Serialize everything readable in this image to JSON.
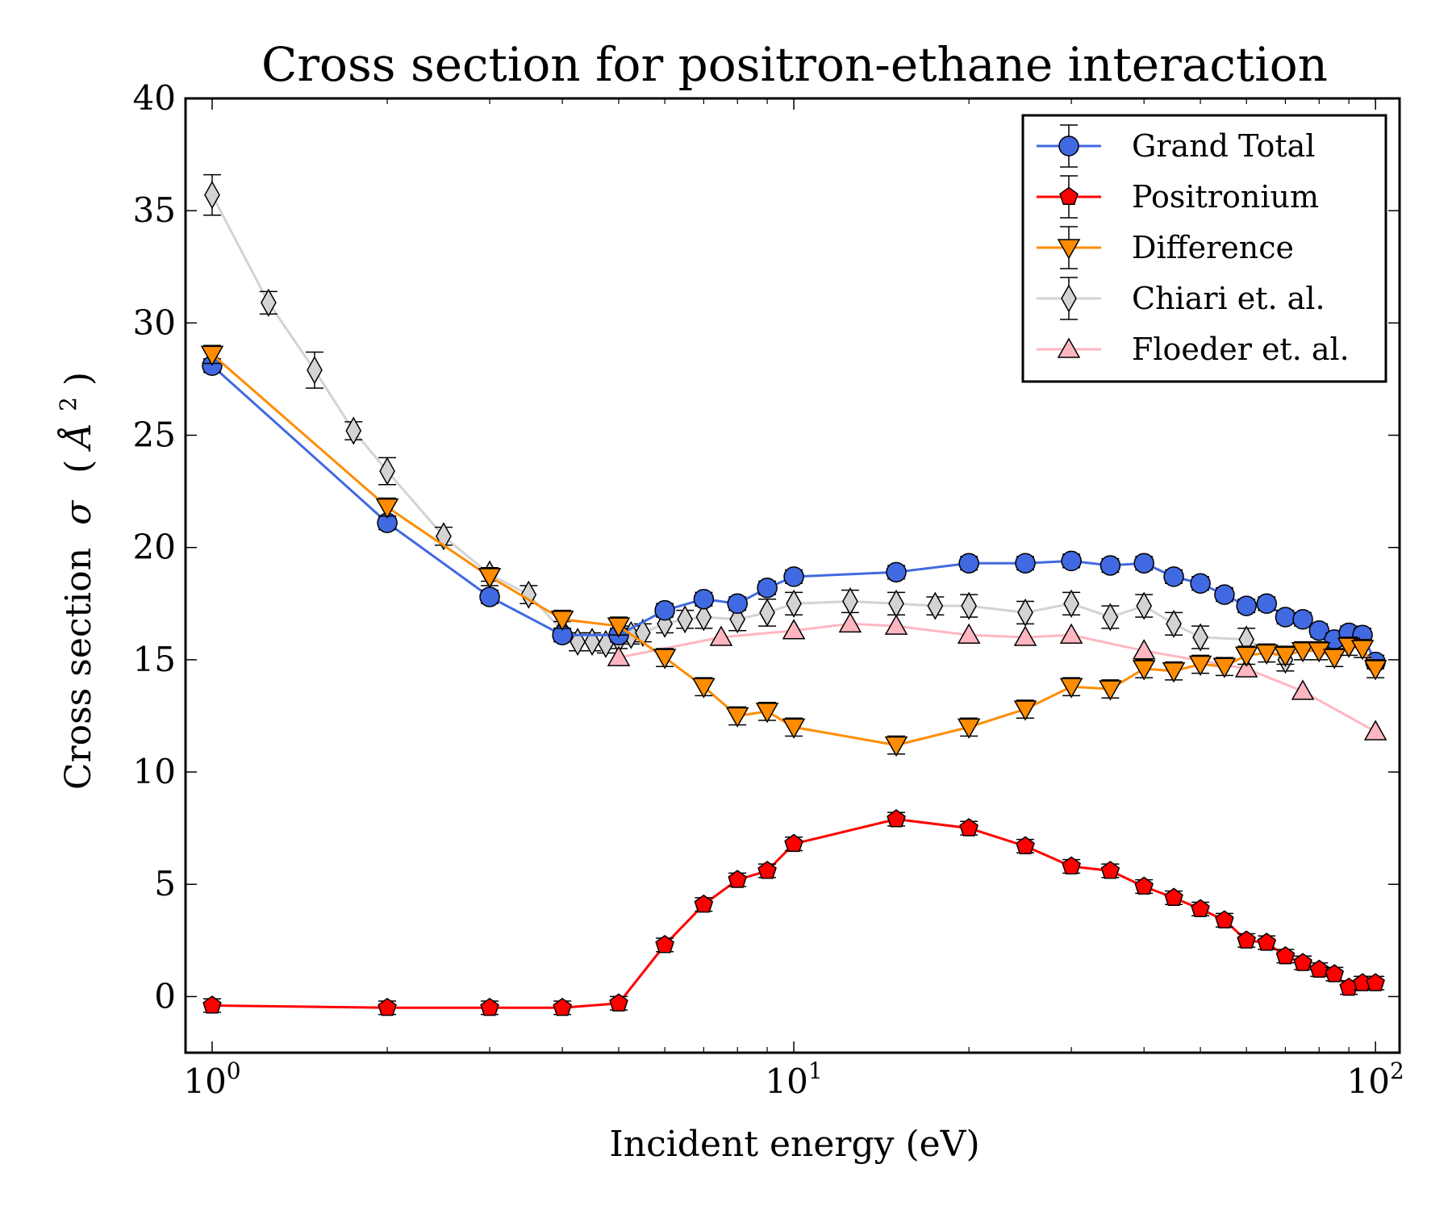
{
  "chart_data": {
    "type": "line",
    "title": "Cross section for positron-ethane interaction",
    "xlabel": "Incident energy (eV)",
    "ylabel": "Cross section σ  (Å²)",
    "ylabel_main": "Cross section",
    "ylabel_symbol": "σ",
    "ylabel_unit_open": "(",
    "ylabel_unit": "Å",
    "ylabel_unit_exp": "2",
    "ylabel_unit_close": ")",
    "x_scale": "log",
    "xlim": [
      0.9,
      110
    ],
    "ylim": [
      -2.5,
      40
    ],
    "grid": false,
    "legend_position": "top-right",
    "x_ticks": [
      {
        "value": 1,
        "base": "10",
        "exp": "0"
      },
      {
        "value": 10,
        "base": "10",
        "exp": "1"
      },
      {
        "value": 100,
        "base": "10",
        "exp": "2"
      }
    ],
    "y_ticks": [
      0,
      5,
      10,
      15,
      20,
      25,
      30,
      35,
      40
    ],
    "y_tick_labels": [
      "0",
      "5",
      "10",
      "15",
      "20",
      "25",
      "30",
      "35",
      "40"
    ],
    "series": [
      {
        "name": "Grand Total",
        "color": "#4169e1",
        "marker": "circle",
        "x": [
          1,
          2,
          3,
          4,
          5,
          6,
          7,
          8,
          9,
          10,
          15,
          20,
          25,
          30,
          35,
          40,
          45,
          50,
          55,
          60,
          65,
          70,
          75,
          80,
          85,
          90,
          95,
          100
        ],
        "y": [
          28.1,
          21.1,
          17.8,
          16.1,
          16.1,
          17.2,
          17.7,
          17.5,
          18.2,
          18.7,
          18.9,
          19.3,
          19.3,
          19.4,
          19.2,
          19.3,
          18.7,
          18.4,
          17.9,
          17.4,
          17.5,
          16.9,
          16.8,
          16.3,
          15.9,
          16.2,
          16.1,
          14.9
        ],
        "err": [
          0.3,
          0.3,
          0.3,
          0.3,
          0.3,
          0.3,
          0.3,
          0.3,
          0.3,
          0.3,
          0.3,
          0.3,
          0.3,
          0.3,
          0.3,
          0.3,
          0.3,
          0.3,
          0.3,
          0.3,
          0.3,
          0.3,
          0.3,
          0.3,
          0.3,
          0.3,
          0.3,
          0.3
        ]
      },
      {
        "name": "Positronium",
        "color": "#ff0000",
        "marker": "pentagon",
        "x": [
          1,
          2,
          3,
          4,
          5,
          6,
          7,
          8,
          9,
          10,
          15,
          20,
          25,
          30,
          35,
          40,
          45,
          50,
          55,
          60,
          65,
          70,
          75,
          80,
          85,
          90,
          95,
          100
        ],
        "y": [
          -0.4,
          -0.5,
          -0.5,
          -0.5,
          -0.3,
          2.3,
          4.1,
          5.2,
          5.6,
          6.8,
          7.9,
          7.5,
          6.7,
          5.8,
          5.6,
          4.9,
          4.4,
          3.9,
          3.4,
          2.5,
          2.4,
          1.8,
          1.5,
          1.2,
          1.0,
          0.4,
          0.6,
          0.6
        ],
        "err": [
          0.3,
          0.3,
          0.3,
          0.3,
          0.3,
          0.3,
          0.3,
          0.3,
          0.3,
          0.3,
          0.3,
          0.3,
          0.3,
          0.3,
          0.3,
          0.3,
          0.3,
          0.3,
          0.3,
          0.3,
          0.3,
          0.3,
          0.3,
          0.3,
          0.3,
          0.3,
          0.3,
          0.3
        ]
      },
      {
        "name": "Difference",
        "color": "#ff8c00",
        "marker": "triangle-down",
        "x": [
          1,
          2,
          3,
          4,
          5,
          6,
          7,
          8,
          9,
          10,
          15,
          20,
          25,
          30,
          35,
          40,
          45,
          50,
          55,
          60,
          65,
          70,
          75,
          80,
          85,
          90,
          95,
          100
        ],
        "y": [
          28.6,
          21.8,
          18.7,
          16.8,
          16.5,
          15.1,
          13.8,
          12.5,
          12.7,
          12.0,
          11.2,
          12.0,
          12.8,
          13.8,
          13.7,
          14.6,
          14.5,
          14.8,
          14.7,
          15.2,
          15.3,
          15.2,
          15.4,
          15.4,
          15.1,
          15.6,
          15.5,
          14.6
        ],
        "err": [
          0.4,
          0.4,
          0.4,
          0.4,
          0.4,
          0.4,
          0.4,
          0.4,
          0.4,
          0.4,
          0.4,
          0.4,
          0.4,
          0.4,
          0.4,
          0.4,
          0.4,
          0.4,
          0.4,
          0.4,
          0.4,
          0.4,
          0.4,
          0.4,
          0.4,
          0.4,
          0.4,
          0.4
        ]
      },
      {
        "name": "Chiari et. al.",
        "color": "#d3d3d3",
        "marker": "thin-diamond",
        "x": [
          1,
          1.25,
          1.5,
          1.75,
          2,
          2.5,
          3,
          3.5,
          4,
          4.25,
          4.5,
          4.75,
          5,
          5.25,
          5.5,
          6,
          6.5,
          7,
          8,
          9,
          10,
          12.5,
          15,
          17.5,
          20,
          25,
          30,
          35,
          40,
          45,
          50,
          60,
          70
        ],
        "y": [
          35.7,
          30.9,
          27.9,
          25.2,
          23.4,
          20.5,
          18.8,
          17.9,
          16.3,
          15.8,
          15.8,
          15.7,
          15.9,
          16.1,
          16.2,
          16.6,
          16.8,
          16.9,
          16.8,
          17.1,
          17.5,
          17.6,
          17.5,
          17.4,
          17.4,
          17.1,
          17.5,
          16.9,
          17.4,
          16.6,
          16.0,
          15.9,
          15.0
        ],
        "err": [
          0.9,
          0.5,
          0.8,
          0.4,
          0.6,
          0.4,
          0.3,
          0.4,
          0.4,
          0.4,
          0.4,
          0.4,
          0.4,
          0.4,
          0.4,
          0.4,
          0.4,
          0.5,
          0.5,
          0.6,
          0.5,
          0.5,
          0.5,
          0.4,
          0.5,
          0.5,
          0.5,
          0.5,
          0.5,
          0.5,
          0.5,
          0.5,
          0.5
        ]
      },
      {
        "name": "Floeder et. al.",
        "color": "#ffb6c1",
        "marker": "triangle-up",
        "x": [
          5,
          7.5,
          10,
          12.5,
          15,
          20,
          25,
          30,
          40,
          60,
          75,
          100
        ],
        "y": [
          15.1,
          16.0,
          16.3,
          16.6,
          16.5,
          16.1,
          16.0,
          16.1,
          15.4,
          14.6,
          13.6,
          11.8
        ],
        "err": null
      }
    ]
  }
}
